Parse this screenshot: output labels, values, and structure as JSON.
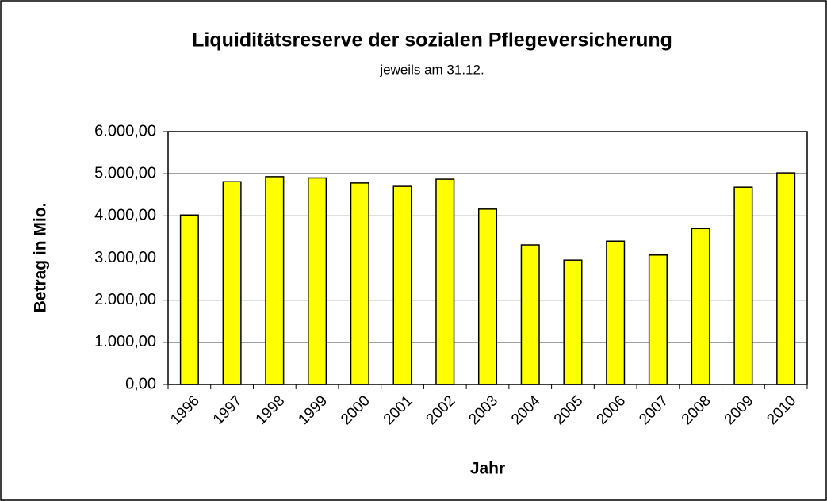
{
  "chart_data": {
    "type": "bar",
    "title": "Liquiditätsreserve der sozialen Pflegeversicherung",
    "subtitle": "jeweils am 31.12.",
    "x_label": "Jahr",
    "y_label": "Betrag in Mio.",
    "categories": [
      "1996",
      "1997",
      "1998",
      "1999",
      "2000",
      "2001",
      "2002",
      "2003",
      "2004",
      "2005",
      "2006",
      "2007",
      "2008",
      "2009",
      "2010"
    ],
    "values": [
      4020,
      4810,
      4930,
      4900,
      4780,
      4700,
      4870,
      4160,
      3310,
      2950,
      3400,
      3070,
      3700,
      4680,
      5020
    ],
    "color": "#ffff00",
    "ylim": [
      0,
      6000
    ],
    "yticks": [
      {
        "value": 0,
        "label": "0,00"
      },
      {
        "value": 1000,
        "label": "1.000,00"
      },
      {
        "value": 2000,
        "label": "2.000,00"
      },
      {
        "value": 3000,
        "label": "3.000,00"
      },
      {
        "value": 4000,
        "label": "4.000,00"
      },
      {
        "value": 5000,
        "label": "5.000,00"
      },
      {
        "value": 6000,
        "label": "6.000,00"
      }
    ],
    "grid": true
  }
}
